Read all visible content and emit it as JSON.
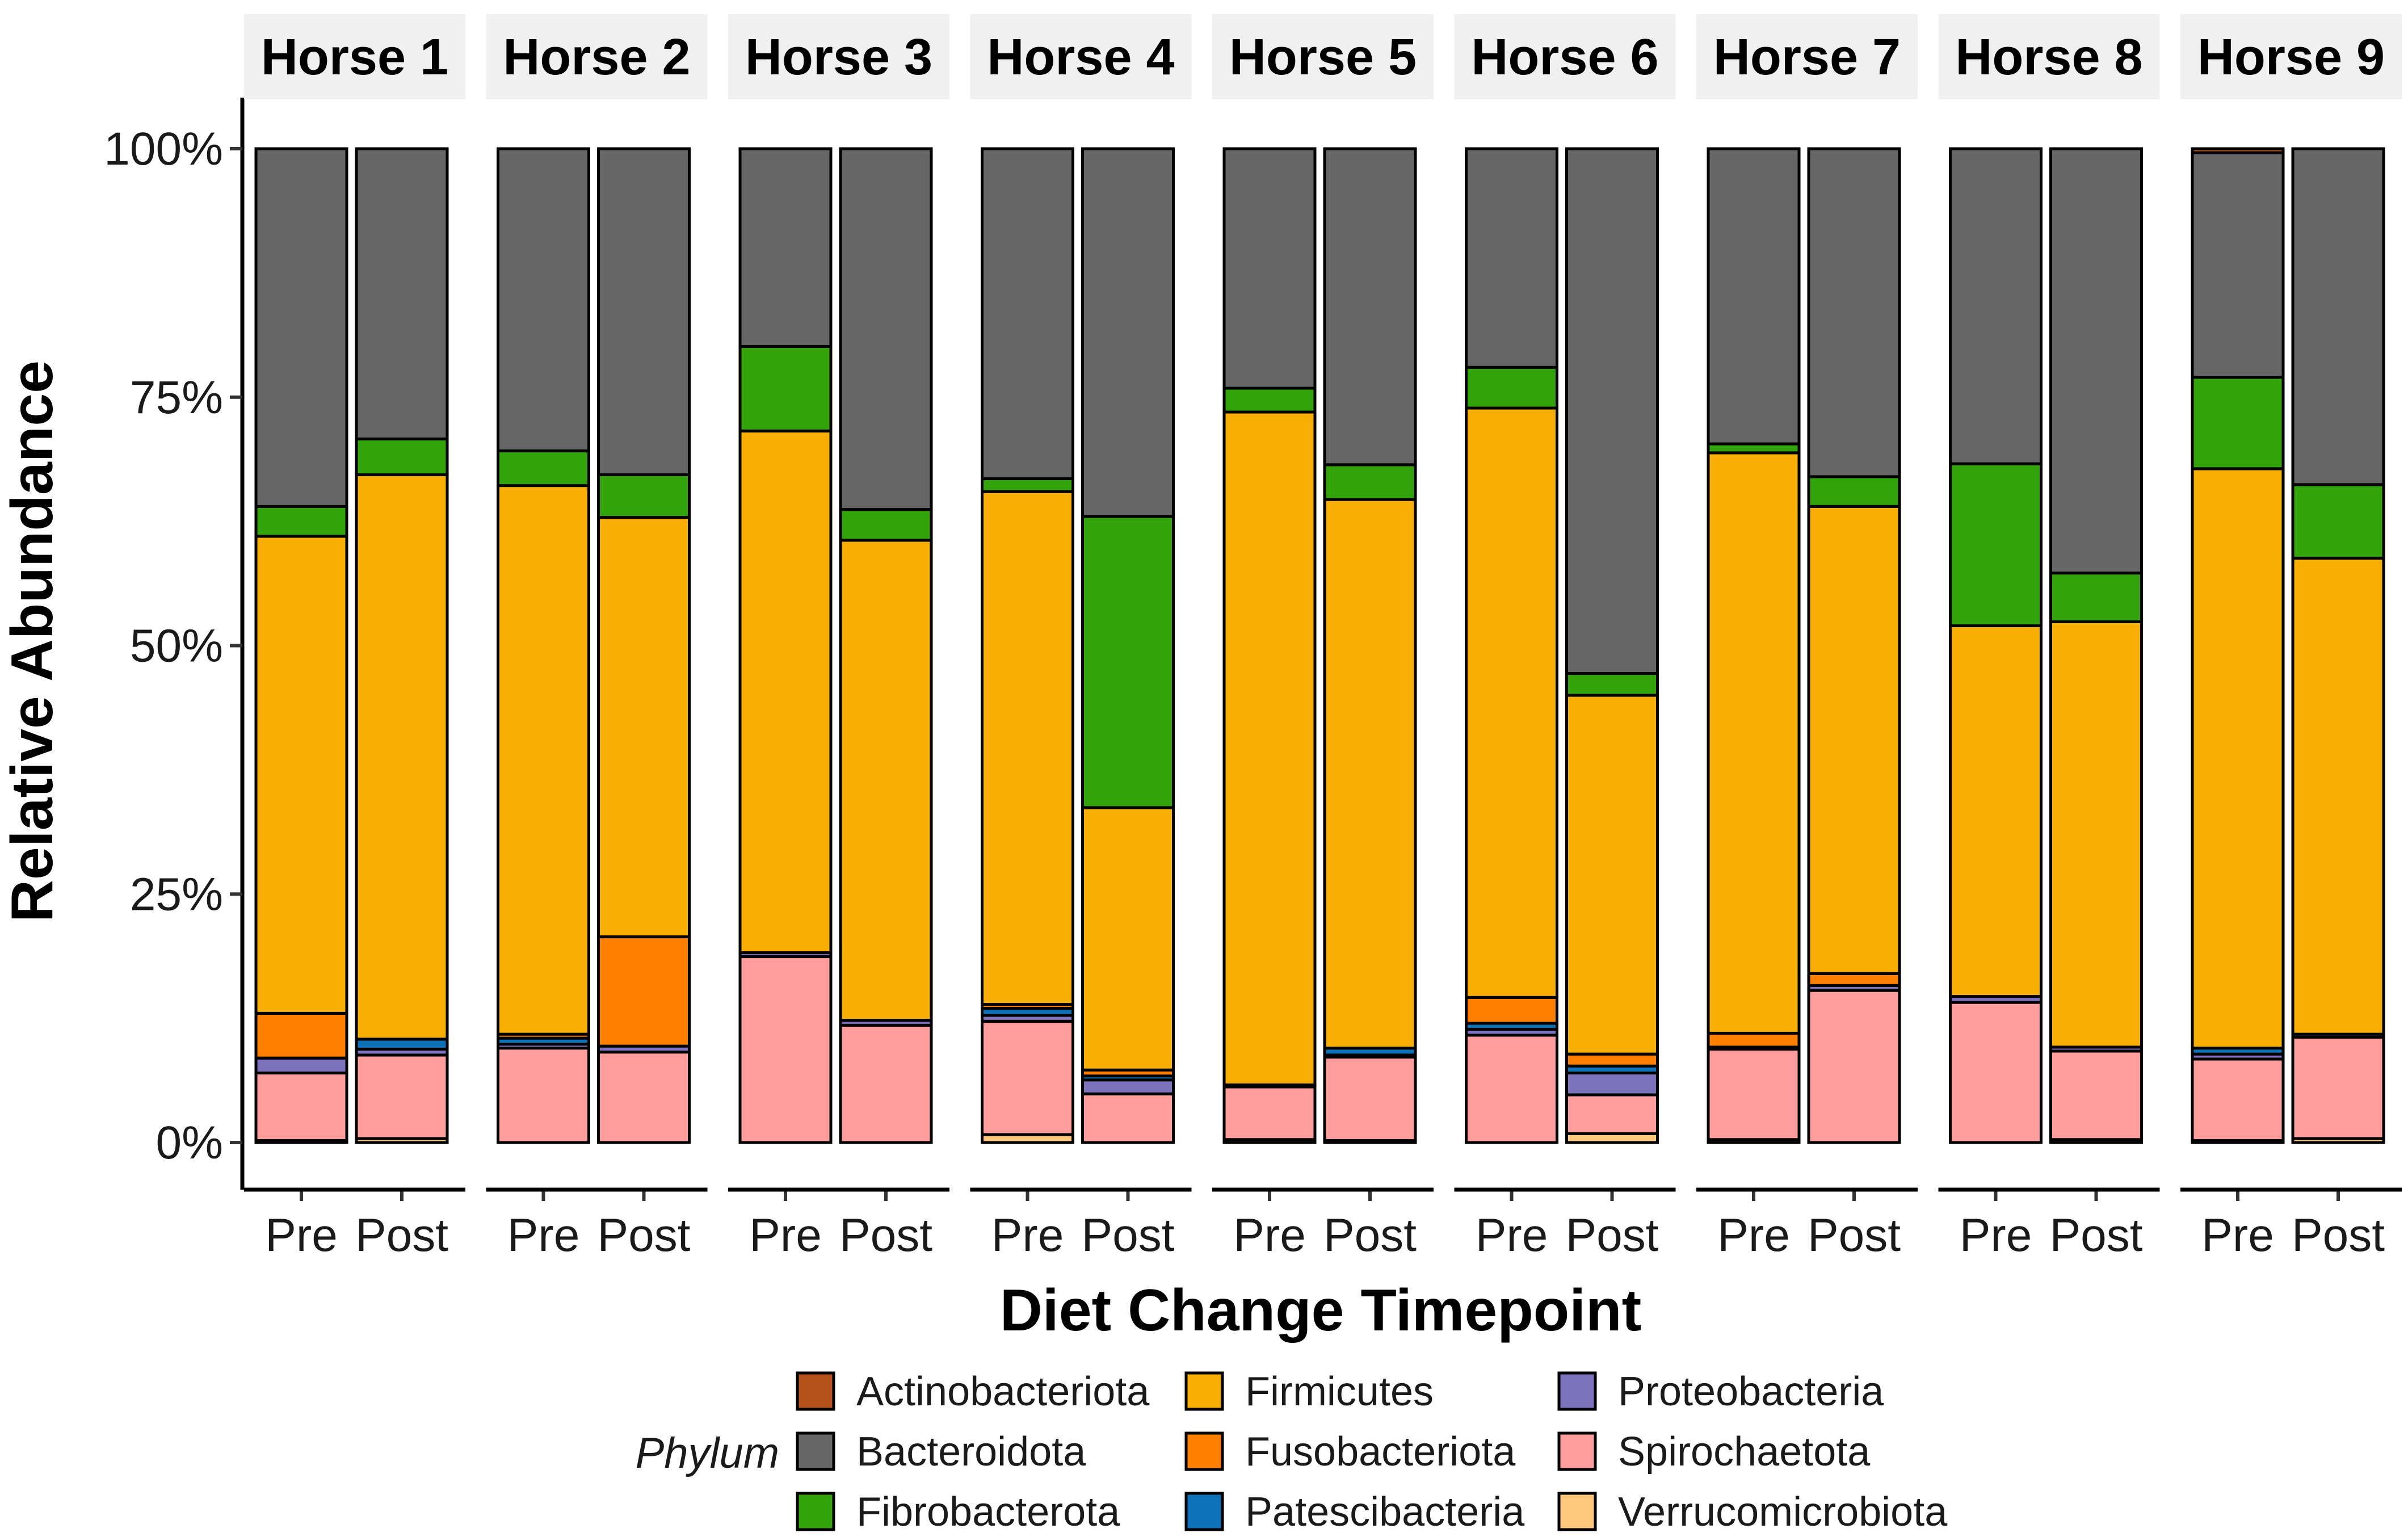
{
  "chart_data": {
    "type": "bar",
    "stacked": true,
    "normalized": true,
    "xlabel": "Diet Change Timepoint",
    "ylabel": "Relative Abundance",
    "ylim": [
      0,
      100
    ],
    "yticks": [
      "0%",
      "25%",
      "50%",
      "75%",
      "100%"
    ],
    "ytick_values": [
      0,
      25,
      50,
      75,
      100
    ],
    "timepoints": [
      "Pre",
      "Post"
    ],
    "legend": {
      "title": "Phylum",
      "position": "bottom",
      "entries": [
        {
          "name": "Actinobacteriota",
          "color": "#B5521C"
        },
        {
          "name": "Bacteroidota",
          "color": "#666666"
        },
        {
          "name": "Fibrobacterota",
          "color": "#33A30B"
        },
        {
          "name": "Firmicutes",
          "color": "#F7AE05"
        },
        {
          "name": "Fusobacteriota",
          "color": "#FF8000"
        },
        {
          "name": "Patescibacteria",
          "color": "#0E72B8"
        },
        {
          "name": "Proteobacteria",
          "color": "#7D73BC"
        },
        {
          "name": "Spirochaetota",
          "color": "#FF9C9C"
        },
        {
          "name": "Verrucomicrobiota",
          "color": "#FFC87A"
        }
      ]
    },
    "stack_order": [
      "Verrucomicrobiota",
      "Spirochaetota",
      "Proteobacteria",
      "Patescibacteria",
      "Fusobacteriota",
      "Firmicutes",
      "Fibrobacterota",
      "Bacteroidota",
      "Actinobacteriota"
    ],
    "facets": [
      {
        "name": "Horse 1",
        "bars": [
          {
            "x": "Pre",
            "values": {
              "Verrucomicrobiota": 0.2,
              "Spirochaetota": 6.8,
              "Proteobacteria": 1.5,
              "Patescibacteria": 0.0,
              "Fusobacteriota": 4.5,
              "Firmicutes": 48.0,
              "Fibrobacterota": 3.0,
              "Bacteroidota": 36.0,
              "Actinobacteriota": 0.0
            }
          },
          {
            "x": "Post",
            "values": {
              "Verrucomicrobiota": 0.4,
              "Spirochaetota": 8.4,
              "Proteobacteria": 0.6,
              "Patescibacteria": 1.0,
              "Fusobacteriota": 0.0,
              "Firmicutes": 56.8,
              "Fibrobacterota": 3.6,
              "Bacteroidota": 29.2,
              "Actinobacteriota": 0.0
            }
          }
        ]
      },
      {
        "name": "Horse 2",
        "bars": [
          {
            "x": "Pre",
            "values": {
              "Verrucomicrobiota": 0.0,
              "Spirochaetota": 9.5,
              "Proteobacteria": 0.4,
              "Patescibacteria": 0.6,
              "Fusobacteriota": 0.4,
              "Firmicutes": 55.2,
              "Fibrobacterota": 3.5,
              "Bacteroidota": 30.4,
              "Actinobacteriota": 0.0
            }
          },
          {
            "x": "Post",
            "values": {
              "Verrucomicrobiota": 0.0,
              "Spirochaetota": 9.1,
              "Proteobacteria": 0.6,
              "Patescibacteria": 0.0,
              "Fusobacteriota": 11.0,
              "Firmicutes": 42.2,
              "Fibrobacterota": 4.3,
              "Bacteroidota": 32.8,
              "Actinobacteriota": 0.0
            }
          }
        ]
      },
      {
        "name": "Horse 3",
        "bars": [
          {
            "x": "Pre",
            "values": {
              "Verrucomicrobiota": 0.0,
              "Spirochaetota": 18.7,
              "Proteobacteria": 0.4,
              "Patescibacteria": 0.0,
              "Fusobacteriota": 0.0,
              "Firmicutes": 52.5,
              "Fibrobacterota": 8.5,
              "Bacteroidota": 19.9,
              "Actinobacteriota": 0.0
            }
          },
          {
            "x": "Post",
            "values": {
              "Verrucomicrobiota": 0.0,
              "Spirochaetota": 11.8,
              "Proteobacteria": 0.5,
              "Patescibacteria": 0.0,
              "Fusobacteriota": 0.0,
              "Firmicutes": 48.3,
              "Fibrobacterota": 3.1,
              "Bacteroidota": 36.3,
              "Actinobacteriota": 0.0
            }
          }
        ]
      },
      {
        "name": "Horse 4",
        "bars": [
          {
            "x": "Pre",
            "values": {
              "Verrucomicrobiota": 0.8,
              "Spirochaetota": 11.4,
              "Proteobacteria": 0.6,
              "Patescibacteria": 0.7,
              "Fusobacteriota": 0.4,
              "Firmicutes": 51.6,
              "Fibrobacterota": 1.3,
              "Bacteroidota": 33.2,
              "Actinobacteriota": 0.0
            }
          },
          {
            "x": "Post",
            "values": {
              "Verrucomicrobiota": 0.0,
              "Spirochaetota": 4.9,
              "Proteobacteria": 1.4,
              "Patescibacteria": 0.4,
              "Fusobacteriota": 0.6,
              "Firmicutes": 26.4,
              "Fibrobacterota": 29.3,
              "Bacteroidota": 37.0,
              "Actinobacteriota": 0.0
            }
          }
        ]
      },
      {
        "name": "Horse 5",
        "bars": [
          {
            "x": "Pre",
            "values": {
              "Verrucomicrobiota": 0.3,
              "Spirochaetota": 5.3,
              "Proteobacteria": 0.2,
              "Patescibacteria": 0.0,
              "Fusobacteriota": 0.0,
              "Firmicutes": 67.7,
              "Fibrobacterota": 2.4,
              "Bacteroidota": 24.1,
              "Actinobacteriota": 0.0
            }
          },
          {
            "x": "Post",
            "values": {
              "Verrucomicrobiota": 0.2,
              "Spirochaetota": 8.4,
              "Proteobacteria": 0.2,
              "Patescibacteria": 0.7,
              "Fusobacteriota": 0.0,
              "Firmicutes": 55.2,
              "Fibrobacterota": 3.5,
              "Bacteroidota": 31.8,
              "Actinobacteriota": 0.0
            }
          }
        ]
      },
      {
        "name": "Horse 6",
        "bars": [
          {
            "x": "Pre",
            "values": {
              "Verrucomicrobiota": 0.0,
              "Spirochaetota": 10.8,
              "Proteobacteria": 0.6,
              "Patescibacteria": 0.6,
              "Fusobacteriota": 2.6,
              "Firmicutes": 59.3,
              "Fibrobacterota": 4.1,
              "Bacteroidota": 22.0,
              "Actinobacteriota": 0.0
            }
          },
          {
            "x": "Post",
            "values": {
              "Verrucomicrobiota": 0.9,
              "Spirochaetota": 3.9,
              "Proteobacteria": 2.2,
              "Patescibacteria": 0.7,
              "Fusobacteriota": 1.2,
              "Firmicutes": 36.1,
              "Fibrobacterota": 2.2,
              "Bacteroidota": 52.8,
              "Actinobacteriota": 0.0
            }
          }
        ]
      },
      {
        "name": "Horse 7",
        "bars": [
          {
            "x": "Pre",
            "values": {
              "Verrucomicrobiota": 0.3,
              "Spirochaetota": 9.1,
              "Proteobacteria": 0.2,
              "Patescibacteria": 0.0,
              "Fusobacteriota": 1.4,
              "Firmicutes": 58.4,
              "Fibrobacterota": 0.9,
              "Bacteroidota": 29.7,
              "Actinobacteriota": 0.0
            }
          },
          {
            "x": "Post",
            "values": {
              "Verrucomicrobiota": 0.0,
              "Spirochaetota": 15.3,
              "Proteobacteria": 0.5,
              "Patescibacteria": 0.0,
              "Fusobacteriota": 1.2,
              "Firmicutes": 47.0,
              "Fibrobacterota": 3.0,
              "Bacteroidota": 33.0,
              "Actinobacteriota": 0.0
            }
          }
        ]
      },
      {
        "name": "Horse 8",
        "bars": [
          {
            "x": "Pre",
            "values": {
              "Verrucomicrobiota": 0.0,
              "Spirochaetota": 14.1,
              "Proteobacteria": 0.6,
              "Patescibacteria": 0.0,
              "Fusobacteriota": 0.0,
              "Firmicutes": 37.3,
              "Fibrobacterota": 16.3,
              "Bacteroidota": 31.7,
              "Actinobacteriota": 0.0
            }
          },
          {
            "x": "Post",
            "values": {
              "Verrucomicrobiota": 0.3,
              "Spirochaetota": 8.9,
              "Proteobacteria": 0.4,
              "Patescibacteria": 0.0,
              "Fusobacteriota": 0.0,
              "Firmicutes": 42.8,
              "Fibrobacterota": 4.9,
              "Bacteroidota": 42.7,
              "Actinobacteriota": 0.0
            }
          }
        ]
      },
      {
        "name": "Horse 9",
        "bars": [
          {
            "x": "Pre",
            "values": {
              "Verrucomicrobiota": 0.2,
              "Spirochaetota": 8.2,
              "Proteobacteria": 0.5,
              "Patescibacteria": 0.6,
              "Fusobacteriota": 0.0,
              "Firmicutes": 58.3,
              "Fibrobacterota": 9.2,
              "Bacteroidota": 22.6,
              "Actinobacteriota": 0.4
            }
          },
          {
            "x": "Post",
            "values": {
              "Verrucomicrobiota": 0.4,
              "Spirochaetota": 10.2,
              "Proteobacteria": 0.3,
              "Patescibacteria": 0.0,
              "Fusobacteriota": 0.0,
              "Firmicutes": 47.9,
              "Fibrobacterota": 7.4,
              "Bacteroidota": 33.8,
              "Actinobacteriota": 0.0
            }
          }
        ]
      }
    ]
  }
}
